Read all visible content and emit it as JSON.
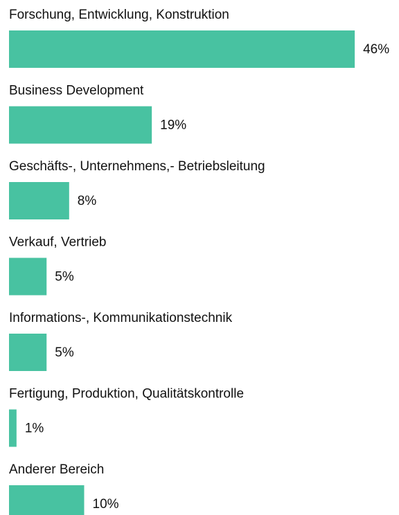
{
  "chart_data": {
    "type": "bar",
    "orientation": "horizontal",
    "categories": [
      "Forschung, Entwicklung, Konstruktion",
      "Business Development",
      "Geschäfts-, Unternehmens,- Betriebsleitung",
      "Verkauf, Vertrieb",
      "Informations-, Kommunikationstechnik",
      "Fertigung, Produktion, Qualitätskontrolle",
      "Anderer Bereich"
    ],
    "values": [
      46,
      19,
      8,
      5,
      5,
      1,
      10
    ],
    "value_labels": [
      "46%",
      "19%",
      "8%",
      "5%",
      "5%",
      "1%",
      "10%"
    ],
    "color": "#48c2a1"
  }
}
